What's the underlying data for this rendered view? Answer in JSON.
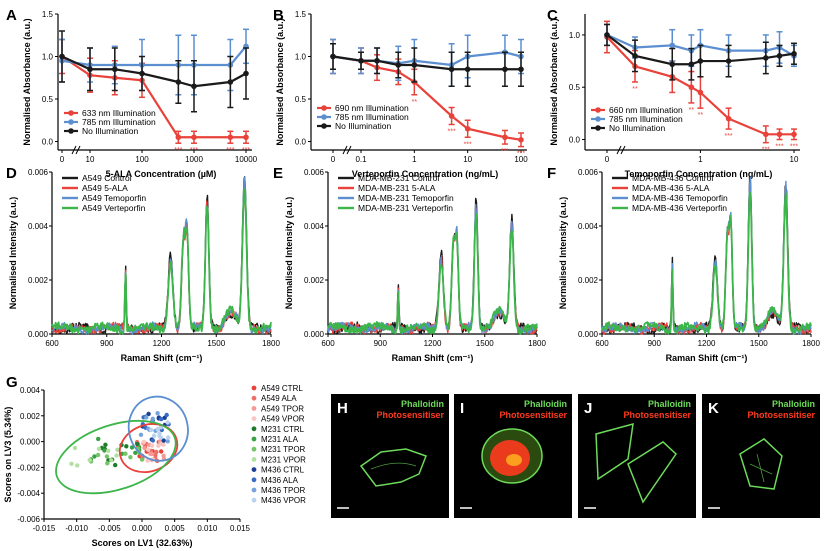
{
  "colors": {
    "red": "#e8423a",
    "blue": "#5b8fd0",
    "black": "#1a1a1a",
    "green": "#3cb54a",
    "micro_green": "#6ddb5a",
    "micro_red": "#ff3a1f"
  },
  "chart_data": [
    {
      "panel": "A",
      "type": "line",
      "xscale": "log-broken",
      "x": [
        0,
        10,
        30,
        100,
        500,
        1000,
        5000,
        10000
      ],
      "xticks": [
        "0",
        "10",
        "100",
        "1000",
        "10000"
      ],
      "xlabel": "5-ALA Concentration (µM)",
      "ylabel": "Normalised Absorbance (a.u.)",
      "ylim": [
        -0.1,
        1.5
      ],
      "yticks": [
        "0.0",
        "0.5",
        "1.0",
        "1.5"
      ],
      "series": [
        {
          "name": "633 nm Illumination",
          "color": "red",
          "values": [
            1.0,
            0.78,
            0.75,
            0.72,
            0.05,
            0.05,
            0.05,
            0.05
          ],
          "err": [
            0.2,
            0.2,
            0.2,
            0.2,
            0.07,
            0.07,
            0.07,
            0.07
          ]
        },
        {
          "name": "785 nm Illumination",
          "color": "blue",
          "values": [
            0.95,
            0.9,
            0.9,
            0.9,
            0.9,
            0.9,
            0.9,
            1.12
          ],
          "err": [
            0.25,
            0.2,
            0.22,
            0.3,
            0.35,
            0.35,
            0.3,
            0.2
          ]
        },
        {
          "name": "No Illumination",
          "color": "black",
          "values": [
            1.0,
            0.85,
            0.85,
            0.8,
            0.7,
            0.65,
            0.7,
            0.8
          ],
          "err": [
            0.3,
            0.25,
            0.25,
            0.2,
            0.25,
            0.3,
            0.3,
            0.3
          ]
        }
      ],
      "stars": [
        {
          "x": 500,
          "label": "***"
        },
        {
          "x": 1000,
          "label": "***"
        },
        {
          "x": 5000,
          "label": "***"
        },
        {
          "x": 10000,
          "label": "***"
        }
      ]
    },
    {
      "panel": "B",
      "type": "line",
      "xscale": "log-broken",
      "x": [
        0,
        0.1,
        0.2,
        0.5,
        1,
        5,
        10,
        50,
        100
      ],
      "xticks": [
        "0",
        "0.1",
        "1",
        "10",
        "100"
      ],
      "xlabel": "Verteporfin Concentration (ng/mL)",
      "ylabel": "Normalised Absorbance (a.u.)",
      "ylim": [
        -0.1,
        1.5
      ],
      "yticks": [
        "0.0",
        "0.5",
        "1.0",
        "1.5"
      ],
      "series": [
        {
          "name": "690 nm Illumination",
          "color": "red",
          "values": [
            1.0,
            0.95,
            0.87,
            0.82,
            0.7,
            0.3,
            0.15,
            0.05,
            0.02
          ],
          "err": [
            0.2,
            0.15,
            0.15,
            0.15,
            0.15,
            0.1,
            0.1,
            0.08,
            0.08
          ]
        },
        {
          "name": "785 nm Illumination",
          "color": "blue",
          "values": [
            1.0,
            0.95,
            0.95,
            0.92,
            0.95,
            0.9,
            1.0,
            1.05,
            1.0
          ],
          "err": [
            0.2,
            0.15,
            0.15,
            0.2,
            0.25,
            0.25,
            0.25,
            0.2,
            0.2
          ]
        },
        {
          "name": "No Illumination",
          "color": "black",
          "values": [
            1.0,
            0.95,
            0.95,
            0.9,
            0.9,
            0.85,
            0.85,
            0.85,
            0.85
          ],
          "err": [
            0.15,
            0.1,
            0.15,
            0.15,
            0.2,
            0.2,
            0.2,
            0.2,
            0.2
          ]
        }
      ],
      "stars": [
        {
          "x": 1,
          "label": "**"
        },
        {
          "x": 5,
          "label": "***"
        },
        {
          "x": 10,
          "label": "***"
        },
        {
          "x": 50,
          "label": "***"
        },
        {
          "x": 100,
          "label": "***"
        }
      ]
    },
    {
      "panel": "C",
      "type": "line",
      "xscale": "log-broken",
      "x": [
        0,
        0.2,
        0.5,
        0.8,
        1,
        2,
        5,
        7,
        10
      ],
      "xticks": [
        "0",
        "1",
        "10"
      ],
      "xlabel": "Temoporfin Concentration (ng/mL)",
      "ylabel": "Normalised Absorbance (a.u.)",
      "ylim": [
        -0.1,
        1.2
      ],
      "yticks": [
        "0.0",
        "0.5",
        "1.0"
      ],
      "series": [
        {
          "name": "660 nm Illumination",
          "color": "red",
          "values": [
            0.98,
            0.7,
            0.6,
            0.5,
            0.45,
            0.2,
            0.05,
            0.05,
            0.05
          ],
          "err": [
            0.15,
            0.15,
            0.15,
            0.15,
            0.15,
            0.1,
            0.08,
            0.05,
            0.05
          ]
        },
        {
          "name": "785 nm Illumination",
          "color": "blue",
          "values": [
            1.0,
            0.88,
            0.9,
            0.85,
            0.9,
            0.85,
            0.85,
            0.88,
            0.8
          ],
          "err": [
            0.1,
            0.1,
            0.15,
            0.15,
            0.15,
            0.15,
            0.15,
            0.15,
            0.1
          ]
        },
        {
          "name": "No Illumination",
          "color": "black",
          "values": [
            1.0,
            0.8,
            0.72,
            0.72,
            0.75,
            0.75,
            0.78,
            0.8,
            0.82
          ],
          "err": [
            0.1,
            0.15,
            0.15,
            0.15,
            0.15,
            0.15,
            0.15,
            0.1,
            0.1
          ]
        }
      ],
      "stars": [
        {
          "x": 0.2,
          "label": "**"
        },
        {
          "x": 0.8,
          "label": "**"
        },
        {
          "x": 1,
          "label": "**"
        },
        {
          "x": 2,
          "label": "***"
        },
        {
          "x": 5,
          "label": "***"
        },
        {
          "x": 7,
          "label": "***"
        },
        {
          "x": 10,
          "label": "***"
        }
      ]
    },
    {
      "panel": "D",
      "type": "line",
      "subtype": "spectrum",
      "xlim": [
        600,
        1800
      ],
      "xticks": [
        "600",
        "900",
        "1200",
        "1500",
        "1800"
      ],
      "ylim": [
        0,
        0.006
      ],
      "yticks": [
        "0.000",
        "0.002",
        "0.004",
        "0.006"
      ],
      "xlabel": "Raman Shift (cm⁻¹)",
      "ylabel": "Normalised Intensity (a.u.)",
      "series": [
        {
          "name": "A549 Control",
          "color": "black"
        },
        {
          "name": "A549 5-ALA",
          "color": "red"
        },
        {
          "name": "A549 Temoporfin",
          "color": "blue"
        },
        {
          "name": "A549 Verteporfin",
          "color": "green"
        }
      ],
      "peaks": [
        {
          "x": 1003,
          "h": 0.0021
        },
        {
          "x": 1250,
          "h": 0.0026
        },
        {
          "x": 1320,
          "h": 0.0032
        },
        {
          "x": 1340,
          "h": 0.0033
        },
        {
          "x": 1450,
          "h": 0.0046
        },
        {
          "x": 1655,
          "h": 0.0053
        }
      ]
    },
    {
      "panel": "E",
      "type": "line",
      "subtype": "spectrum",
      "xlim": [
        600,
        1800
      ],
      "xticks": [
        "600",
        "900",
        "1200",
        "1500",
        "1800"
      ],
      "ylim": [
        0,
        0.006
      ],
      "yticks": [
        "0.000",
        "0.002",
        "0.004",
        "0.006"
      ],
      "xlabel": "Raman Shift (cm⁻¹)",
      "ylabel": "Normalised Intensity (a.u.)",
      "series": [
        {
          "name": "MDA-MB-231 Control",
          "color": "black"
        },
        {
          "name": "MDA-MB-231 5-ALA",
          "color": "red"
        },
        {
          "name": "MDA-MB-231 Temoporfin",
          "color": "blue"
        },
        {
          "name": "MDA-MB-231 Verteporfin",
          "color": "green"
        }
      ],
      "peaks": [
        {
          "x": 1003,
          "h": 0.0014
        },
        {
          "x": 1250,
          "h": 0.0026
        },
        {
          "x": 1320,
          "h": 0.0031
        },
        {
          "x": 1340,
          "h": 0.0031
        },
        {
          "x": 1450,
          "h": 0.0045
        },
        {
          "x": 1655,
          "h": 0.0038
        }
      ]
    },
    {
      "panel": "F",
      "type": "line",
      "subtype": "spectrum",
      "xlim": [
        600,
        1800
      ],
      "xticks": [
        "600",
        "900",
        "1200",
        "1500",
        "1800"
      ],
      "ylim": [
        0,
        0.006
      ],
      "yticks": [
        "0.000",
        "0.002",
        "0.004",
        "0.006"
      ],
      "xlabel": "Raman Shift (cm⁻¹)",
      "ylabel": "Normalised Intensity (a.u.)",
      "series": [
        {
          "name": "MDA-MB-436 Control",
          "color": "black"
        },
        {
          "name": "MDA-MB-436 5-ALA",
          "color": "red"
        },
        {
          "name": "MDA-MB-436 Temoporfin",
          "color": "blue"
        },
        {
          "name": "MDA-MB-436 Verteporfin",
          "color": "green"
        }
      ],
      "peaks": [
        {
          "x": 1003,
          "h": 0.0024
        },
        {
          "x": 1250,
          "h": 0.0025
        },
        {
          "x": 1320,
          "h": 0.0034
        },
        {
          "x": 1340,
          "h": 0.0035
        },
        {
          "x": 1450,
          "h": 0.0054
        },
        {
          "x": 1655,
          "h": 0.0051
        }
      ]
    },
    {
      "panel": "G",
      "type": "scatter",
      "xlabel": "Scores on LV1 (32.63%)",
      "ylabel": "Scores on LV3 (5.34%)",
      "xlim": [
        -0.015,
        0.015
      ],
      "ylim": [
        -0.006,
        0.004
      ],
      "xticks": [
        "-0.015",
        "-0.010",
        "-0.005",
        "0.000",
        "0.005",
        "0.010",
        "0.015"
      ],
      "yticks": [
        "-0.006",
        "-0.004",
        "-0.002",
        "0.000",
        "0.002",
        "0.004"
      ],
      "groups": [
        {
          "name": "A549 CTRL",
          "color": "#e8423a"
        },
        {
          "name": "A549 ALA",
          "color": "#ef6f67"
        },
        {
          "name": "A549 TPOR",
          "color": "#f59a94"
        },
        {
          "name": "A549 VPOR",
          "color": "#f9c6c2"
        },
        {
          "name": "M231 CTRL",
          "color": "#1f7a2c"
        },
        {
          "name": "M231 ALA",
          "color": "#3aa245"
        },
        {
          "name": "M231 TPOR",
          "color": "#74c46a"
        },
        {
          "name": "M231 VPOR",
          "color": "#b2e0a3"
        },
        {
          "name": "M436 CTRL",
          "color": "#1c3f94"
        },
        {
          "name": "M436 ALA",
          "color": "#3b6cc4"
        },
        {
          "name": "M436 TPOR",
          "color": "#78a4dc"
        },
        {
          "name": "M436 VPOR",
          "color": "#b9d3ef"
        }
      ],
      "ellipses": [
        {
          "group": "A549",
          "color": "#e8423a",
          "cx": 0.001,
          "cy": -0.0005,
          "rx": 0.0045,
          "ry": 0.0018,
          "angle": -20
        },
        {
          "group": "M231",
          "color": "#3cb54a",
          "cx": -0.004,
          "cy": -0.0012,
          "rx": 0.0095,
          "ry": 0.0025,
          "angle": -18
        },
        {
          "group": "M436",
          "color": "#5b8fd0",
          "cx": 0.0025,
          "cy": 0.001,
          "rx": 0.0045,
          "ry": 0.0025,
          "angle": -15
        }
      ]
    }
  ],
  "micrographs": [
    {
      "panel": "H",
      "label1": "Phalloidin",
      "label2": "Photosensitiser"
    },
    {
      "panel": "I",
      "label1": "Phalloidin",
      "label2": "Photosensitiser"
    },
    {
      "panel": "J",
      "label1": "Phalloidin",
      "label2": "Photosensitiser"
    },
    {
      "panel": "K",
      "label1": "Phalloidin",
      "label2": "Photosensitiser"
    }
  ]
}
